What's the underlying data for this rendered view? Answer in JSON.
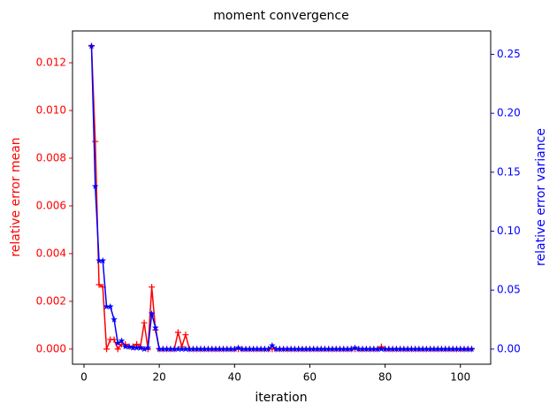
{
  "chart_data": {
    "type": "line",
    "title": "moment convergence",
    "x_label": "iteration",
    "y_label": "relative error mean",
    "y2_label": "relative error variance",
    "x": [
      2,
      3,
      4,
      5,
      6,
      7,
      8,
      9,
      10,
      11,
      12,
      13,
      14,
      15,
      16,
      17,
      18,
      19,
      20,
      21,
      22,
      23,
      24,
      25,
      26,
      27,
      28,
      29,
      30,
      31,
      32,
      33,
      34,
      35,
      36,
      37,
      38,
      39,
      40,
      41,
      42,
      43,
      44,
      45,
      46,
      47,
      48,
      49,
      50,
      51,
      52,
      53,
      54,
      55,
      56,
      57,
      58,
      59,
      60,
      61,
      62,
      63,
      64,
      65,
      66,
      67,
      68,
      69,
      70,
      71,
      72,
      73,
      74,
      75,
      76,
      77,
      78,
      79,
      80,
      81,
      82,
      83,
      84,
      85,
      86,
      87,
      88,
      89,
      90,
      91,
      92,
      93,
      94,
      95,
      96,
      97,
      98,
      99,
      100,
      101,
      102,
      103
    ],
    "series": [
      {
        "name": "relative error mean",
        "color": "#ff0000",
        "marker": "plus",
        "axis": "y",
        "values": [
          0.0127,
          0.0087,
          0.0027,
          0.0026,
          0,
          0.0004,
          0.0004,
          0,
          0.0002,
          0.0002,
          0.0001,
          0.0001,
          0.0002,
          0.0001,
          0.0011,
          0,
          0.0026,
          0.0008,
          0,
          0,
          0,
          0,
          0,
          0.0007,
          0.0001,
          0.0006,
          0,
          0,
          0,
          0,
          0,
          0,
          0,
          0,
          0,
          0,
          0,
          0,
          0,
          0,
          0,
          0,
          0,
          0,
          0,
          0,
          0,
          0,
          0,
          0,
          0,
          0,
          0,
          0,
          0,
          0,
          0,
          0,
          0,
          0,
          0,
          0,
          0,
          0,
          0,
          0,
          0,
          0,
          0,
          0,
          0,
          0,
          0,
          0,
          0,
          0,
          0,
          0.0001,
          0,
          0,
          0,
          0,
          0,
          0,
          0,
          0,
          0,
          0,
          0,
          0,
          0,
          0,
          0,
          0,
          0,
          0,
          0,
          0,
          0,
          0,
          0,
          0
        ]
      },
      {
        "name": "relative error variance",
        "color": "#0000ff",
        "marker": "star",
        "axis": "y2",
        "values": [
          0.257,
          0.138,
          0.075,
          0.075,
          0.036,
          0.036,
          0.025,
          0.005,
          0.007,
          0.002,
          0.002,
          0.001,
          0.001,
          0.001,
          0,
          0.001,
          0.03,
          0.018,
          0,
          0,
          0,
          0,
          0,
          0,
          0,
          0,
          0,
          0,
          0,
          0,
          0,
          0,
          0,
          0,
          0,
          0,
          0,
          0,
          0,
          0.001,
          0,
          0,
          0,
          0,
          0,
          0,
          0,
          0,
          0.003,
          0,
          0,
          0,
          0,
          0,
          0,
          0,
          0,
          0,
          0,
          0,
          0,
          0,
          0,
          0,
          0,
          0,
          0,
          0,
          0,
          0,
          0.001,
          0,
          0,
          0,
          0,
          0,
          0,
          0,
          0,
          0,
          0,
          0,
          0,
          0,
          0,
          0,
          0,
          0,
          0,
          0,
          0,
          0,
          0,
          0,
          0,
          0,
          0,
          0,
          0,
          0,
          0,
          0
        ]
      }
    ],
    "xlim": [
      -3.05,
      108.05
    ],
    "xticks": [
      0,
      20,
      40,
      60,
      80,
      100
    ],
    "ylim": [
      -0.000635,
      0.013335
    ],
    "yticks": [
      {
        "value": 0,
        "label": "0.000"
      },
      {
        "value": 0.002,
        "label": "0.002"
      },
      {
        "value": 0.004,
        "label": "0.004"
      },
      {
        "value": 0.006,
        "label": "0.006"
      },
      {
        "value": 0.008,
        "label": "0.008"
      },
      {
        "value": 0.01,
        "label": "0.010"
      },
      {
        "value": 0.012,
        "label": "0.012"
      }
    ],
    "y2lim": [
      -0.01285,
      0.26985
    ],
    "y2ticks": [
      {
        "value": 0,
        "label": "0.00"
      },
      {
        "value": 0.05,
        "label": "0.05"
      },
      {
        "value": 0.1,
        "label": "0.10"
      },
      {
        "value": 0.15,
        "label": "0.15"
      },
      {
        "value": 0.2,
        "label": "0.20"
      },
      {
        "value": 0.25,
        "label": "0.25"
      }
    ],
    "grid": false
  }
}
